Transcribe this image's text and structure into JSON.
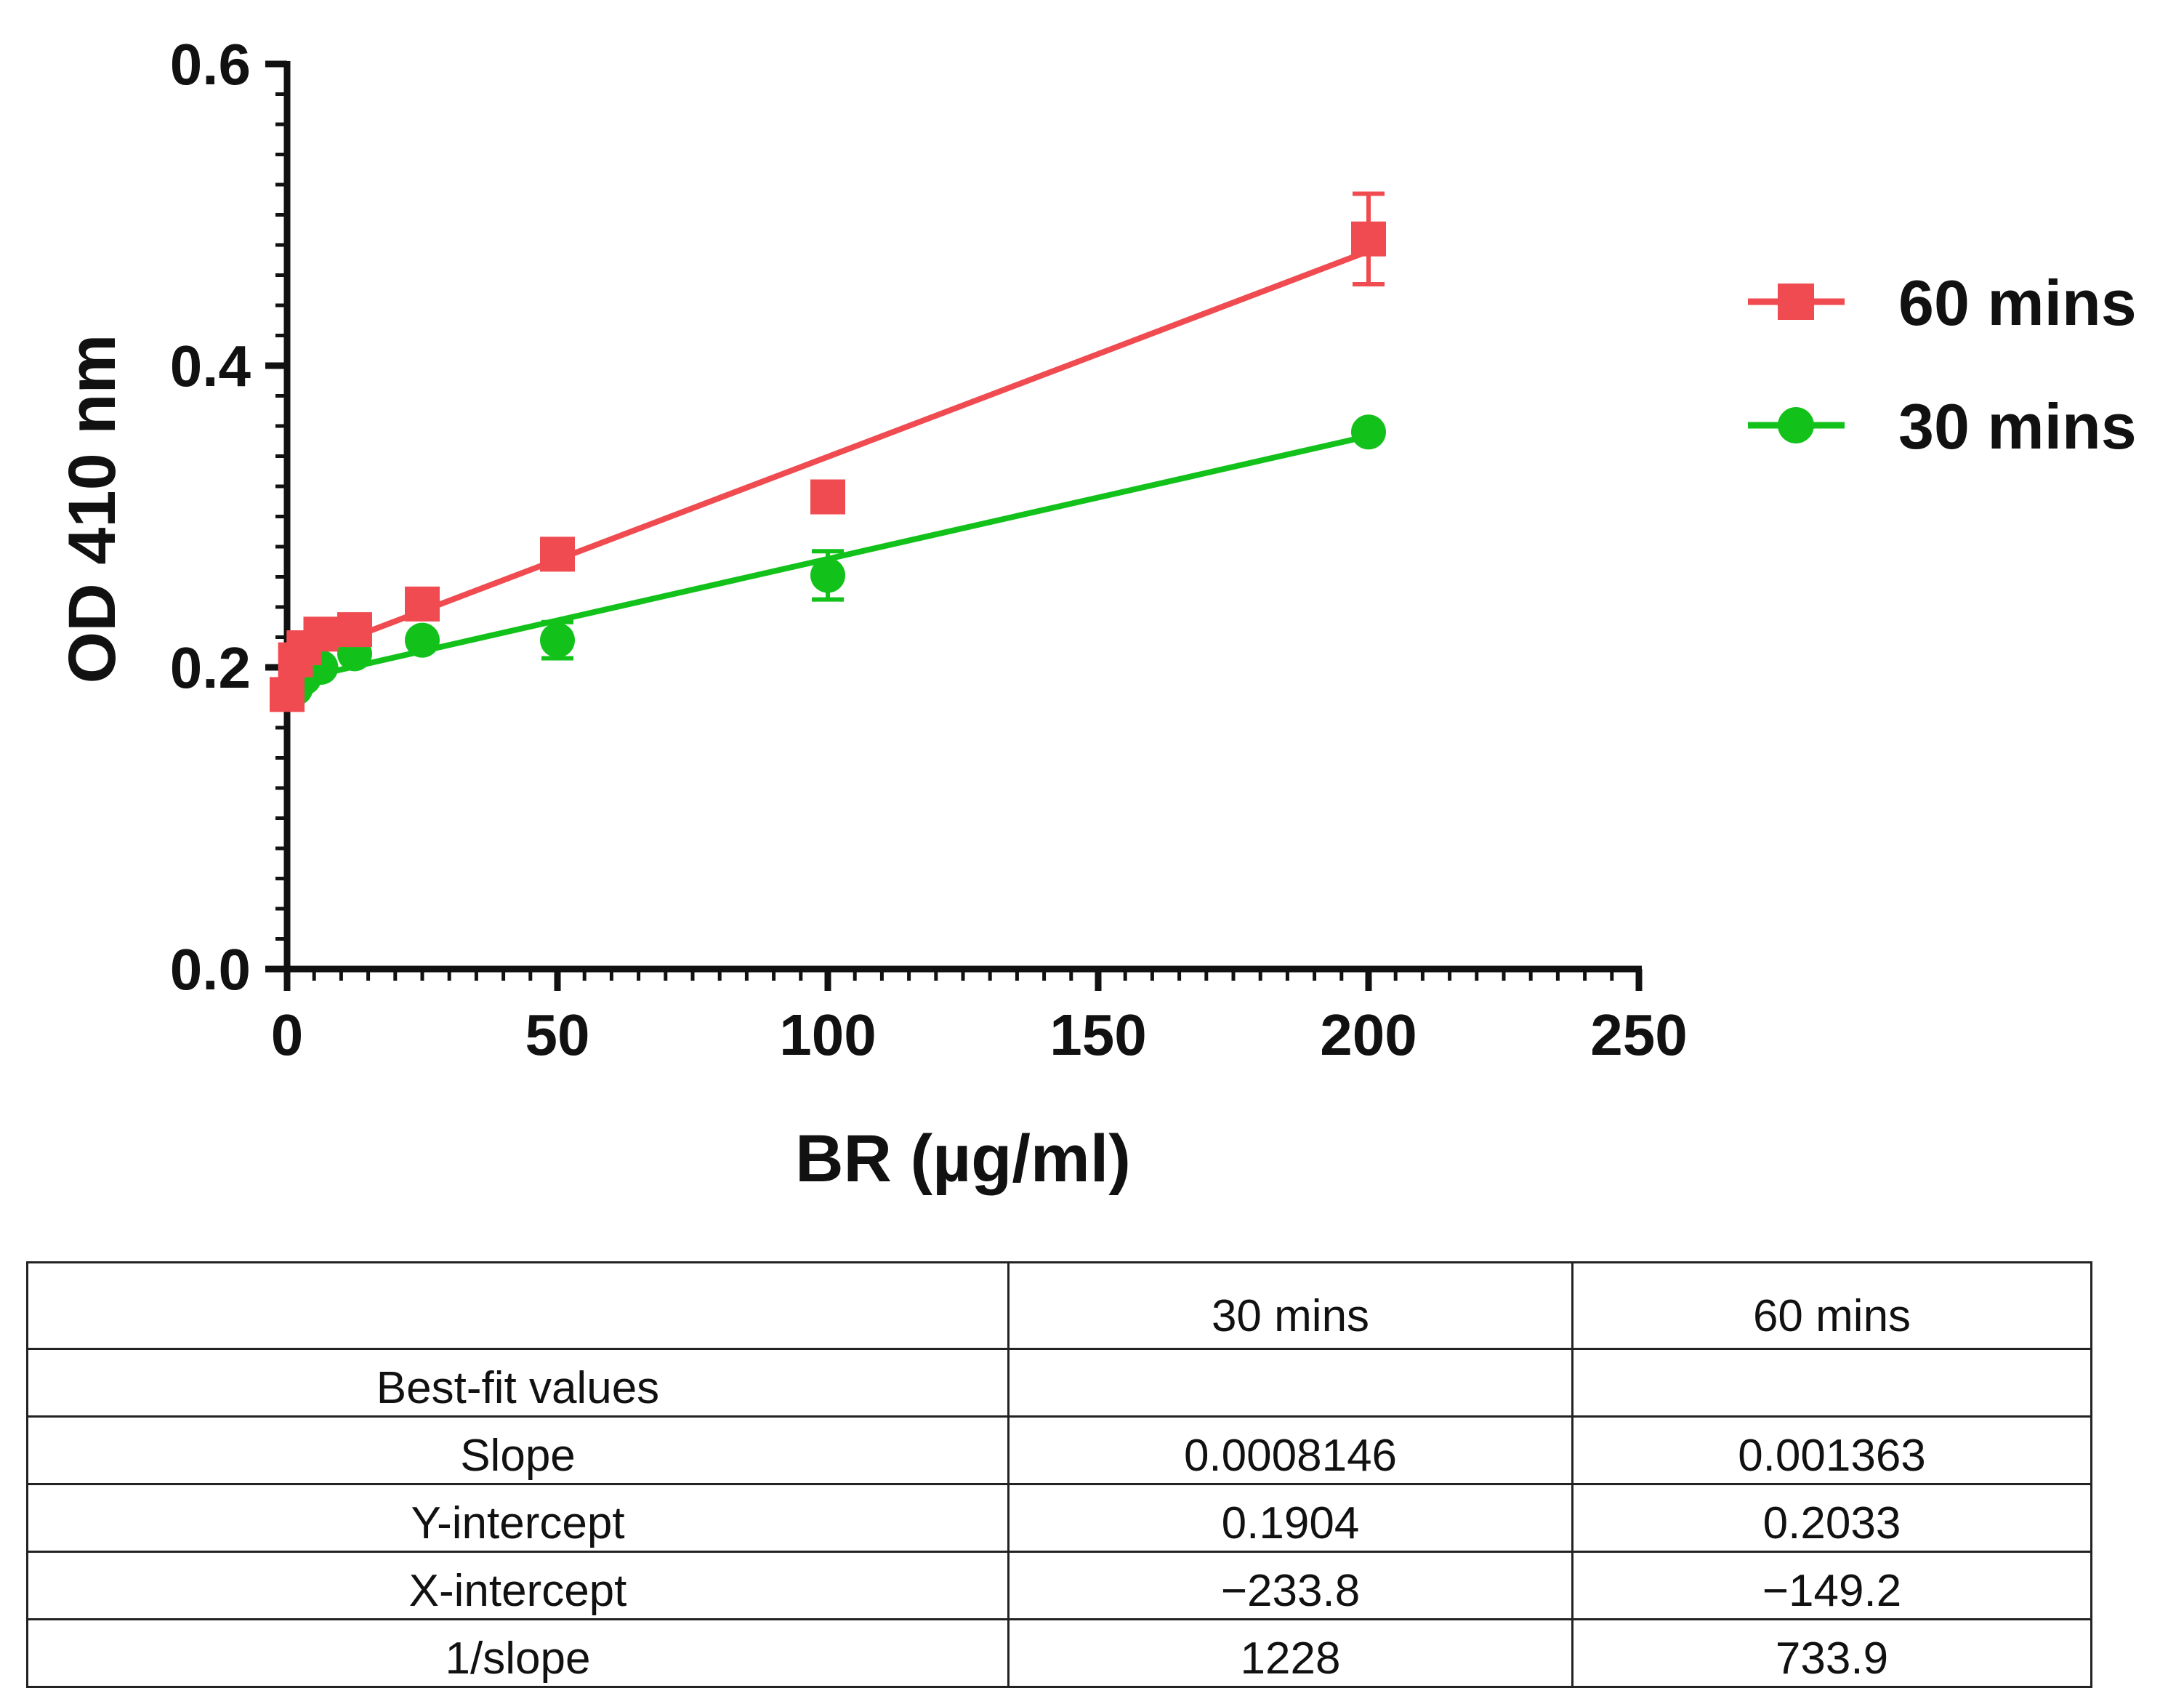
{
  "chart_data": {
    "type": "scatter",
    "title": "",
    "xlabel": "BR (µg/ml)",
    "ylabel": "OD 410 nm",
    "xlim": [
      0,
      250
    ],
    "ylim": [
      0,
      0.6
    ],
    "x_ticks": [
      "0",
      "50",
      "100",
      "150",
      "200",
      "250"
    ],
    "y_ticks": [
      "0.0",
      "0.2",
      "0.4",
      "0.6"
    ],
    "x_tick_values": [
      0,
      50,
      100,
      150,
      200,
      250
    ],
    "y_tick_values": [
      0,
      0.2,
      0.4,
      0.6
    ],
    "legend_position": "right",
    "series": [
      {
        "name": "60 mins",
        "color": "#f04b50",
        "marker": "square",
        "x": [
          0,
          1.5625,
          3.125,
          6.25,
          12.5,
          25,
          50,
          100,
          200
        ],
        "y": [
          0.182,
          0.205,
          0.213,
          0.222,
          0.225,
          0.242,
          0.275,
          0.313,
          0.484
        ],
        "err": [
          0,
          0,
          0,
          0,
          0,
          0.004,
          0.005,
          0.004,
          0.03
        ],
        "fit": {
          "slope": 0.001363,
          "intercept": 0.2033
        }
      },
      {
        "name": "30 mins",
        "color": "#12c21b",
        "marker": "circle",
        "x": [
          0,
          1.5625,
          3.125,
          6.25,
          12.5,
          25,
          50,
          100,
          200
        ],
        "y": [
          0.183,
          0.186,
          0.193,
          0.2,
          0.209,
          0.218,
          0.218,
          0.261,
          0.356
        ],
        "err": [
          0,
          0,
          0,
          0,
          0,
          0,
          0.012,
          0.016,
          0
        ],
        "fit": {
          "slope": 0.0008146,
          "intercept": 0.1904
        }
      }
    ]
  },
  "table": {
    "header": [
      "",
      "30 mins",
      "60 mins"
    ],
    "rows": [
      [
        "Best-fit values",
        "",
        ""
      ],
      [
        "Slope",
        "0.0008146",
        "0.001363"
      ],
      [
        "Y-intercept",
        "0.1904",
        "0.2033"
      ],
      [
        "X-intercept",
        "−233.8",
        "−149.2"
      ],
      [
        "1/slope",
        "1228",
        "733.9"
      ]
    ]
  }
}
